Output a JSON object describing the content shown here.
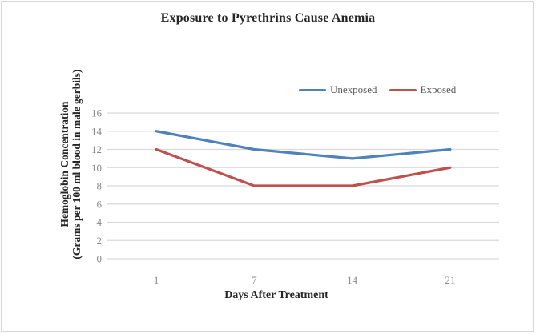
{
  "chart_data": {
    "type": "line",
    "title": "Exposure to Pyrethrins Cause Anemia",
    "xlabel": "Days After Treatment",
    "ylabel": "Hemoglobin Concentration (Grams per 100 ml blood in male gerbils)",
    "ylabel_lines": [
      "Hemoglobin Concentration",
      "(Grams per 100 ml blood in male gerbils)"
    ],
    "categories": [
      "1",
      "7",
      "14",
      "21"
    ],
    "series": [
      {
        "name": "Unexposed",
        "color": "#4f81bd",
        "values": [
          14,
          12,
          11,
          12
        ]
      },
      {
        "name": "Exposed",
        "color": "#c0504d",
        "values": [
          12,
          8,
          8,
          10
        ]
      }
    ],
    "ylim": [
      0,
      16
    ],
    "ytick_labels": [
      "0",
      "2",
      "4",
      "6",
      "8",
      "10",
      "12",
      "14",
      "16"
    ],
    "grid": "horizontal",
    "legend_position": "top-right",
    "colors": {
      "gridline": "#d9d9d9",
      "tick_text": "#8a8a8a",
      "text": "#262626",
      "border": "#d8d8d8"
    }
  }
}
